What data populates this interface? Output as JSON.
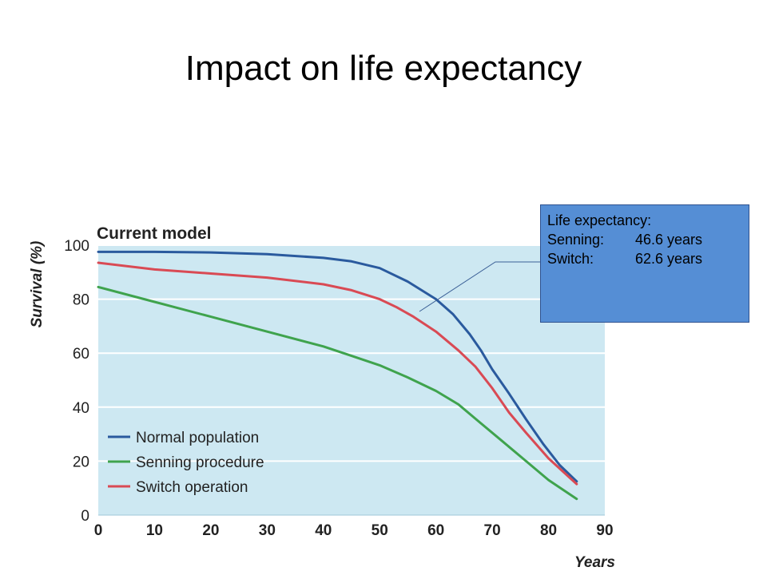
{
  "slide": {
    "title": "Impact on life expectancy"
  },
  "callout": {
    "heading": "Life expectancy:",
    "rows": [
      {
        "label": "Senning:",
        "value": "46.6 years"
      },
      {
        "label": "Switch:",
        "value": "62.6 years"
      }
    ]
  },
  "chart_data": {
    "type": "line",
    "title": "Current model",
    "xlabel": "Years",
    "ylabel": "Survival (%)",
    "xlim": [
      0,
      90
    ],
    "ylim": [
      0,
      100
    ],
    "xticks": [
      0,
      10,
      20,
      30,
      40,
      50,
      60,
      70,
      80,
      90
    ],
    "yticks": [
      0,
      20,
      40,
      60,
      80,
      100
    ],
    "grid": true,
    "legend_position": "bottom-left",
    "background_color": "#cde8f2",
    "series": [
      {
        "name": "Normal population",
        "color": "#2a5a9e",
        "x": [
          0,
          10,
          20,
          30,
          40,
          45,
          50,
          55,
          60,
          63,
          66,
          68,
          70,
          73,
          76,
          79,
          82,
          85
        ],
        "y": [
          97.5,
          97.5,
          97.3,
          96.7,
          95.3,
          94,
          91.5,
          86.5,
          80,
          74.5,
          67,
          61,
          54,
          45,
          35.5,
          26.5,
          18.5,
          12.5
        ]
      },
      {
        "name": "Senning procedure",
        "color": "#3fa34d",
        "x": [
          0,
          10,
          20,
          30,
          40,
          45,
          50,
          55,
          60,
          64,
          68,
          72,
          76,
          80,
          85
        ],
        "y": [
          84.5,
          79,
          73.5,
          68,
          62.5,
          59,
          55.5,
          51,
          46,
          41,
          34,
          27,
          20,
          13,
          6
        ]
      },
      {
        "name": "Switch operation",
        "color": "#d94a54",
        "x": [
          0,
          10,
          20,
          30,
          40,
          45,
          50,
          53,
          56,
          60,
          64,
          67,
          70,
          73,
          76,
          80,
          85
        ],
        "y": [
          93.5,
          91,
          89.5,
          88,
          85.5,
          83.3,
          80,
          77,
          73.5,
          68,
          61,
          55,
          47,
          38,
          30.5,
          21,
          11.5
        ]
      }
    ]
  }
}
